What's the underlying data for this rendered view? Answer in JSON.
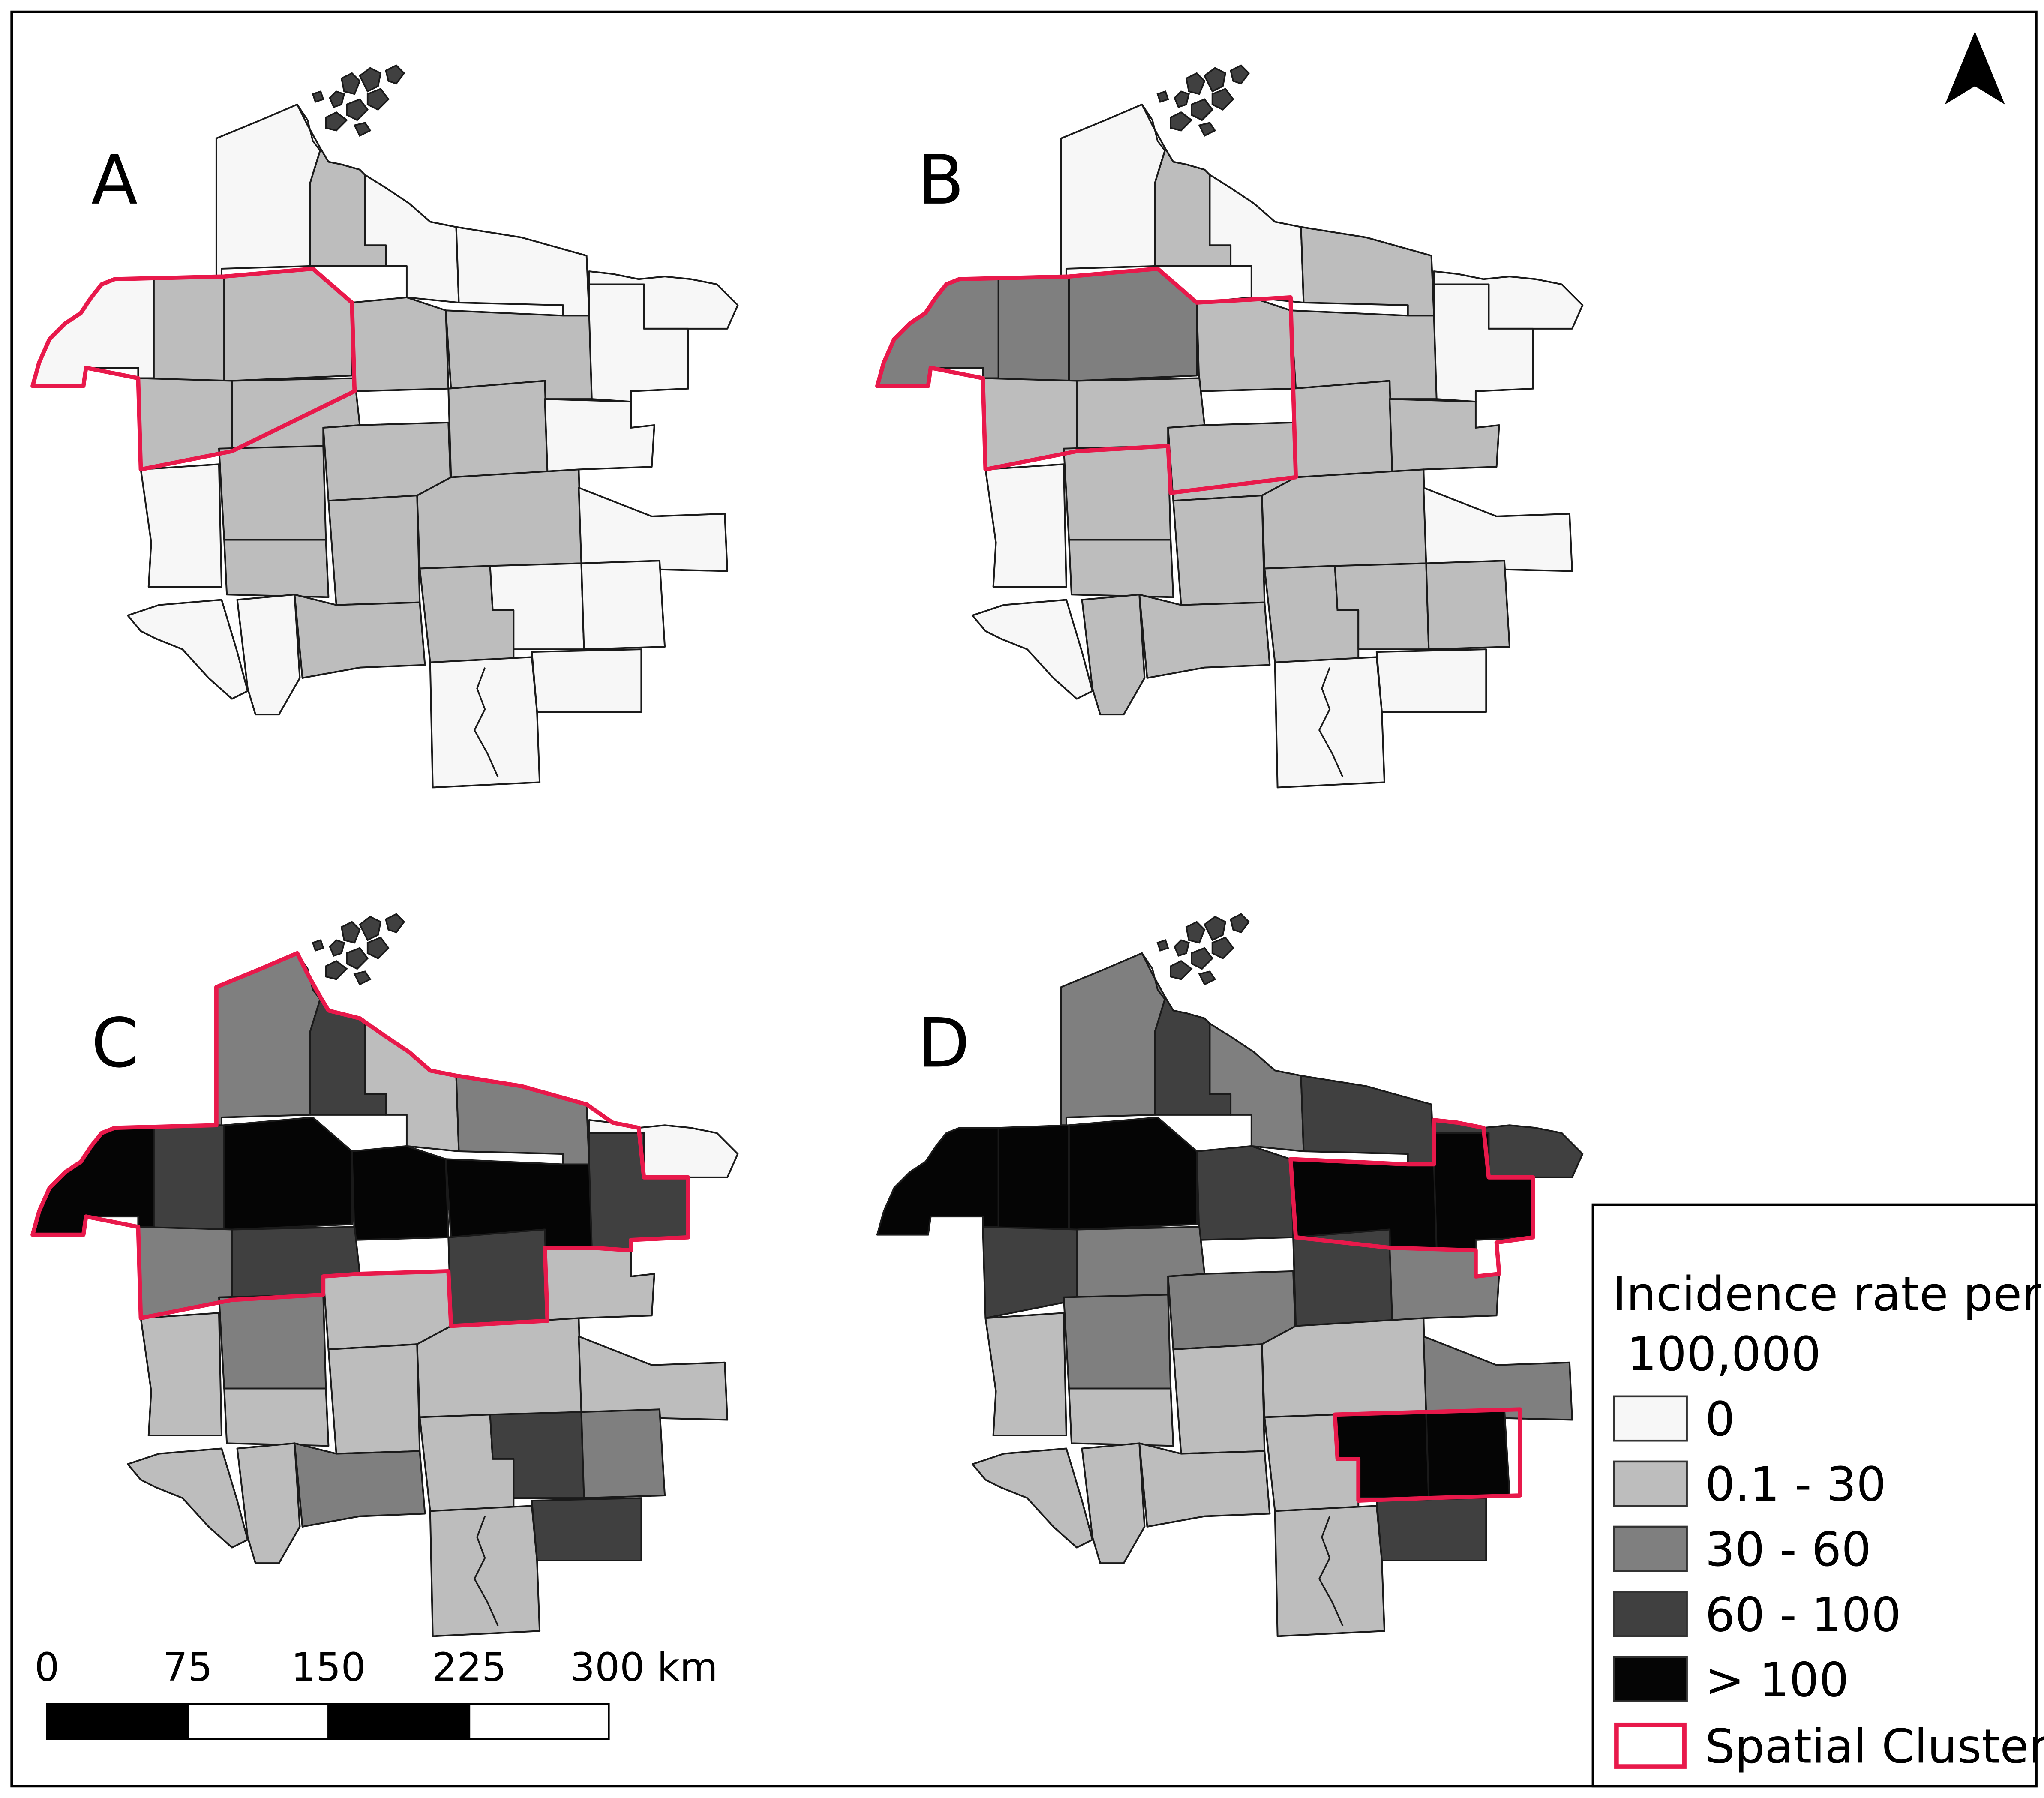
{
  "panels": [
    {
      "label": "A",
      "scheme": "A"
    },
    {
      "label": "B",
      "scheme": "B"
    },
    {
      "label": "C",
      "scheme": "C"
    },
    {
      "label": "D",
      "scheme": "D"
    }
  ],
  "legend": {
    "title_line1": "Incidence rate per",
    "title_line2": "100,000",
    "classes": [
      {
        "label": "0",
        "color": "#f7f7f7"
      },
      {
        "label": "0.1 - 30",
        "color": "#bdbdbd"
      },
      {
        "label": "30 - 60",
        "color": "#7f7f7f"
      },
      {
        "label": "60 - 100",
        "color": "#404040"
      },
      {
        "label": "> 100",
        "color": "#050505"
      }
    ],
    "cluster_label": "Spatial Cluster",
    "cluster_color": "#e8194b"
  },
  "scalebar": {
    "ticks": [
      "0",
      "75",
      "150",
      "225",
      "300 km"
    ]
  },
  "north_arrow": {
    "icon": "north-arrow-icon"
  },
  "colors": {
    "outline": "#1a1a1a",
    "frame": "#000000",
    "cluster": "#e8194b"
  }
}
